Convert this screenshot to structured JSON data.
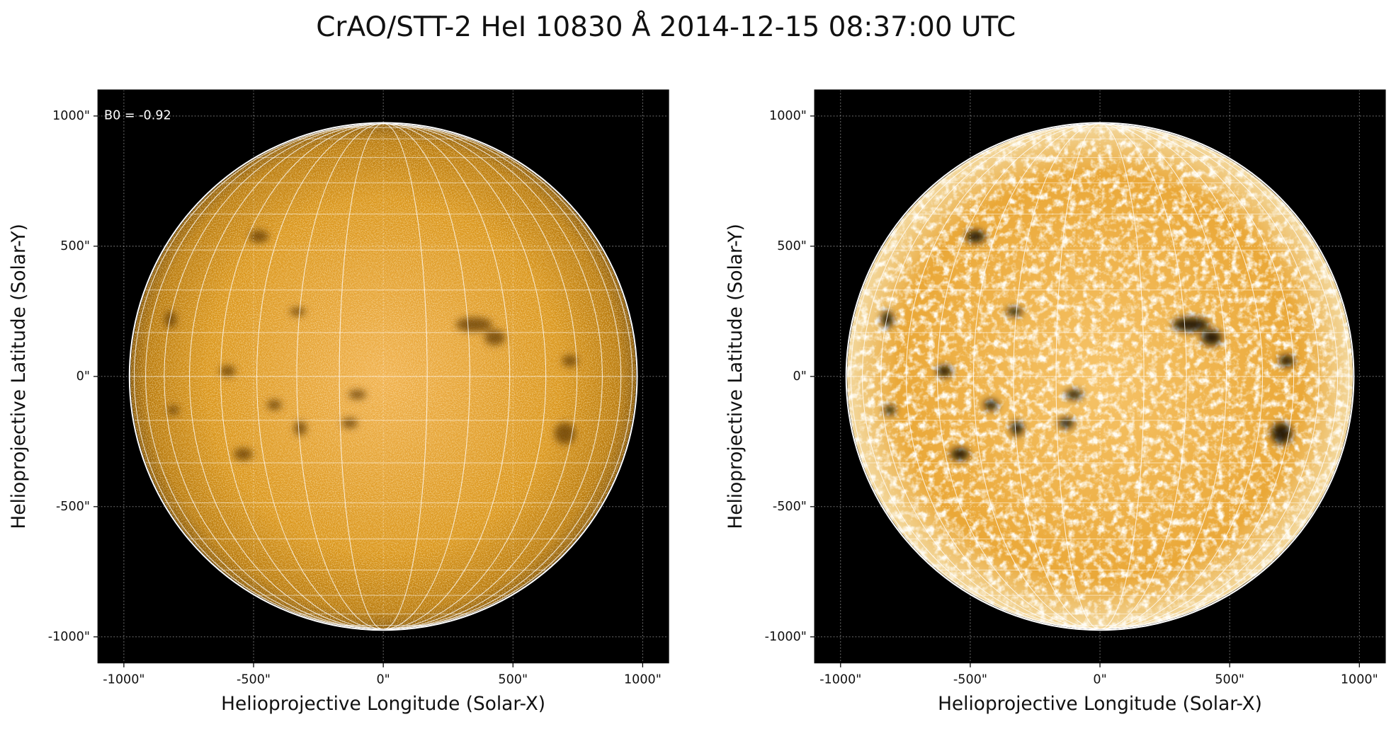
{
  "title": "CrAO/STT-2 HeI 10830 Å 2014-12-15 08:37:00 UTC",
  "panels": [
    {
      "annotation": "B0 = -0.92",
      "xlabel": "Helioprojective Longitude (Solar-X)",
      "ylabel": "Helioprojective Latitude (Solar-Y)",
      "xlim": [
        -1100,
        1100
      ],
      "ylim": [
        -1100,
        1100
      ],
      "xticks": [
        {
          "value": -1000,
          "label": "-1000\""
        },
        {
          "value": -500,
          "label": "-500\""
        },
        {
          "value": 0,
          "label": "0\""
        },
        {
          "value": 500,
          "label": "500\""
        },
        {
          "value": 1000,
          "label": "1000\""
        }
      ],
      "yticks": [
        {
          "value": -1000,
          "label": "-1000\""
        },
        {
          "value": -500,
          "label": "-500\""
        },
        {
          "value": 0,
          "label": "0\""
        },
        {
          "value": 500,
          "label": "500\""
        },
        {
          "value": 1000,
          "label": "1000\""
        }
      ]
    },
    {
      "xlabel": "Helioprojective Longitude (Solar-X)",
      "ylabel": "Helioprojective Latitude (Solar-Y)",
      "xlim": [
        -1100,
        1100
      ],
      "ylim": [
        -1100,
        1100
      ],
      "xticks": [
        {
          "value": -1000,
          "label": "-1000\""
        },
        {
          "value": -500,
          "label": "-500\""
        },
        {
          "value": 0,
          "label": "0\""
        },
        {
          "value": 500,
          "label": "500\""
        },
        {
          "value": 1000,
          "label": "1000\""
        }
      ],
      "yticks": [
        {
          "value": -1000,
          "label": "-1000\""
        },
        {
          "value": -500,
          "label": "-500\""
        },
        {
          "value": 0,
          "label": "0\""
        },
        {
          "value": 500,
          "label": "500\""
        },
        {
          "value": 1000,
          "label": "1000\""
        }
      ]
    }
  ]
}
